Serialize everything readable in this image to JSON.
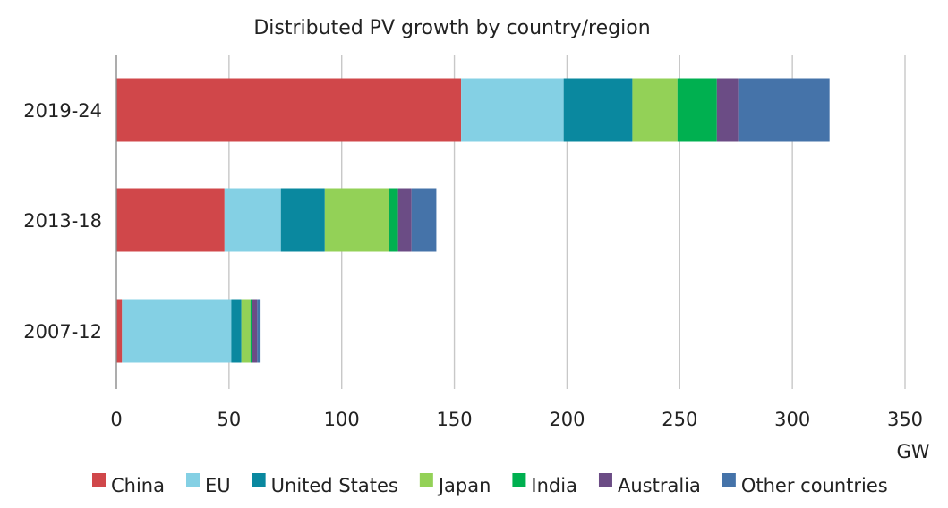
{
  "chart_data": {
    "type": "bar",
    "orientation": "horizontal",
    "stacked": true,
    "title": "Distributed PV growth by country/region",
    "xlabel": "GW",
    "ylabel": "",
    "xlim": [
      0,
      350
    ],
    "xticks": [
      0,
      50,
      100,
      150,
      200,
      250,
      300,
      350
    ],
    "grid": true,
    "legend_position": "bottom",
    "categories": [
      "2019-24",
      "2013-18",
      "2007-12"
    ],
    "series": [
      {
        "name": "China",
        "color": "#D0474A",
        "values": [
          153,
          48,
          2.5
        ]
      },
      {
        "name": "EU",
        "color": "#84D0E4",
        "values": [
          45.5,
          25,
          48.5
        ]
      },
      {
        "name": "United States",
        "color": "#0A889F",
        "values": [
          30.5,
          19.5,
          4.5
        ]
      },
      {
        "name": "Japan",
        "color": "#93D157",
        "values": [
          20,
          28.5,
          4
        ]
      },
      {
        "name": "India",
        "color": "#00B050",
        "values": [
          17.5,
          4,
          0.5
        ]
      },
      {
        "name": "Australia",
        "color": "#6B4C85",
        "values": [
          9.5,
          6,
          2.5
        ]
      },
      {
        "name": "Other countries",
        "color": "#4573A9",
        "values": [
          40.5,
          11,
          1.5
        ]
      }
    ]
  }
}
